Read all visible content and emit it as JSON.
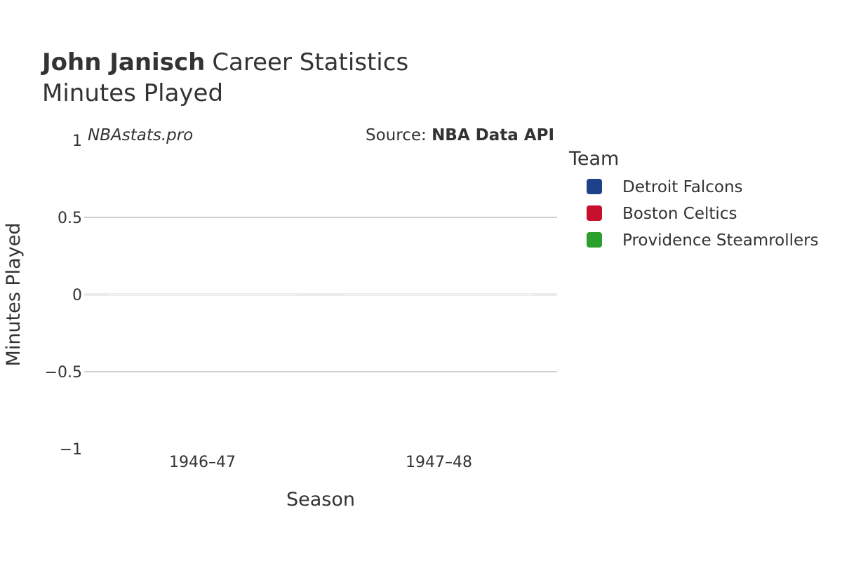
{
  "header": {
    "player_name": "John Janisch",
    "title_suffix": "Career Statistics",
    "subtitle": "Minutes Played"
  },
  "watermark": "NBAstats.pro",
  "source": {
    "prefix": "Source: ",
    "name": "NBA Data API"
  },
  "legend": {
    "title": "Team",
    "items": [
      {
        "label": "Detroit Falcons",
        "color": "#1d428a"
      },
      {
        "label": "Boston Celtics",
        "color": "#c8102e"
      },
      {
        "label": "Providence Steamrollers",
        "color": "#2ca02c"
      }
    ]
  },
  "chart_data": {
    "type": "bar",
    "categories": [
      "1946–47",
      "1947–48"
    ],
    "series": [
      {
        "name": "Detroit Falcons",
        "values": [
          0,
          null
        ],
        "color": "#1d428a"
      },
      {
        "name": "Boston Celtics",
        "values": [
          null,
          0
        ],
        "color": "#c8102e"
      },
      {
        "name": "Providence Steamrollers",
        "values": [
          null,
          0
        ],
        "color": "#2ca02c"
      }
    ],
    "xlabel": "Season",
    "ylabel": "Minutes Played",
    "ylim": [
      -1,
      1
    ],
    "yticks": [
      -1,
      -0.5,
      0,
      0.5,
      1
    ],
    "ytick_labels": [
      "−1",
      "−0.5",
      "0",
      "0.5",
      "1"
    ],
    "grid": true,
    "legend_position": "right"
  }
}
